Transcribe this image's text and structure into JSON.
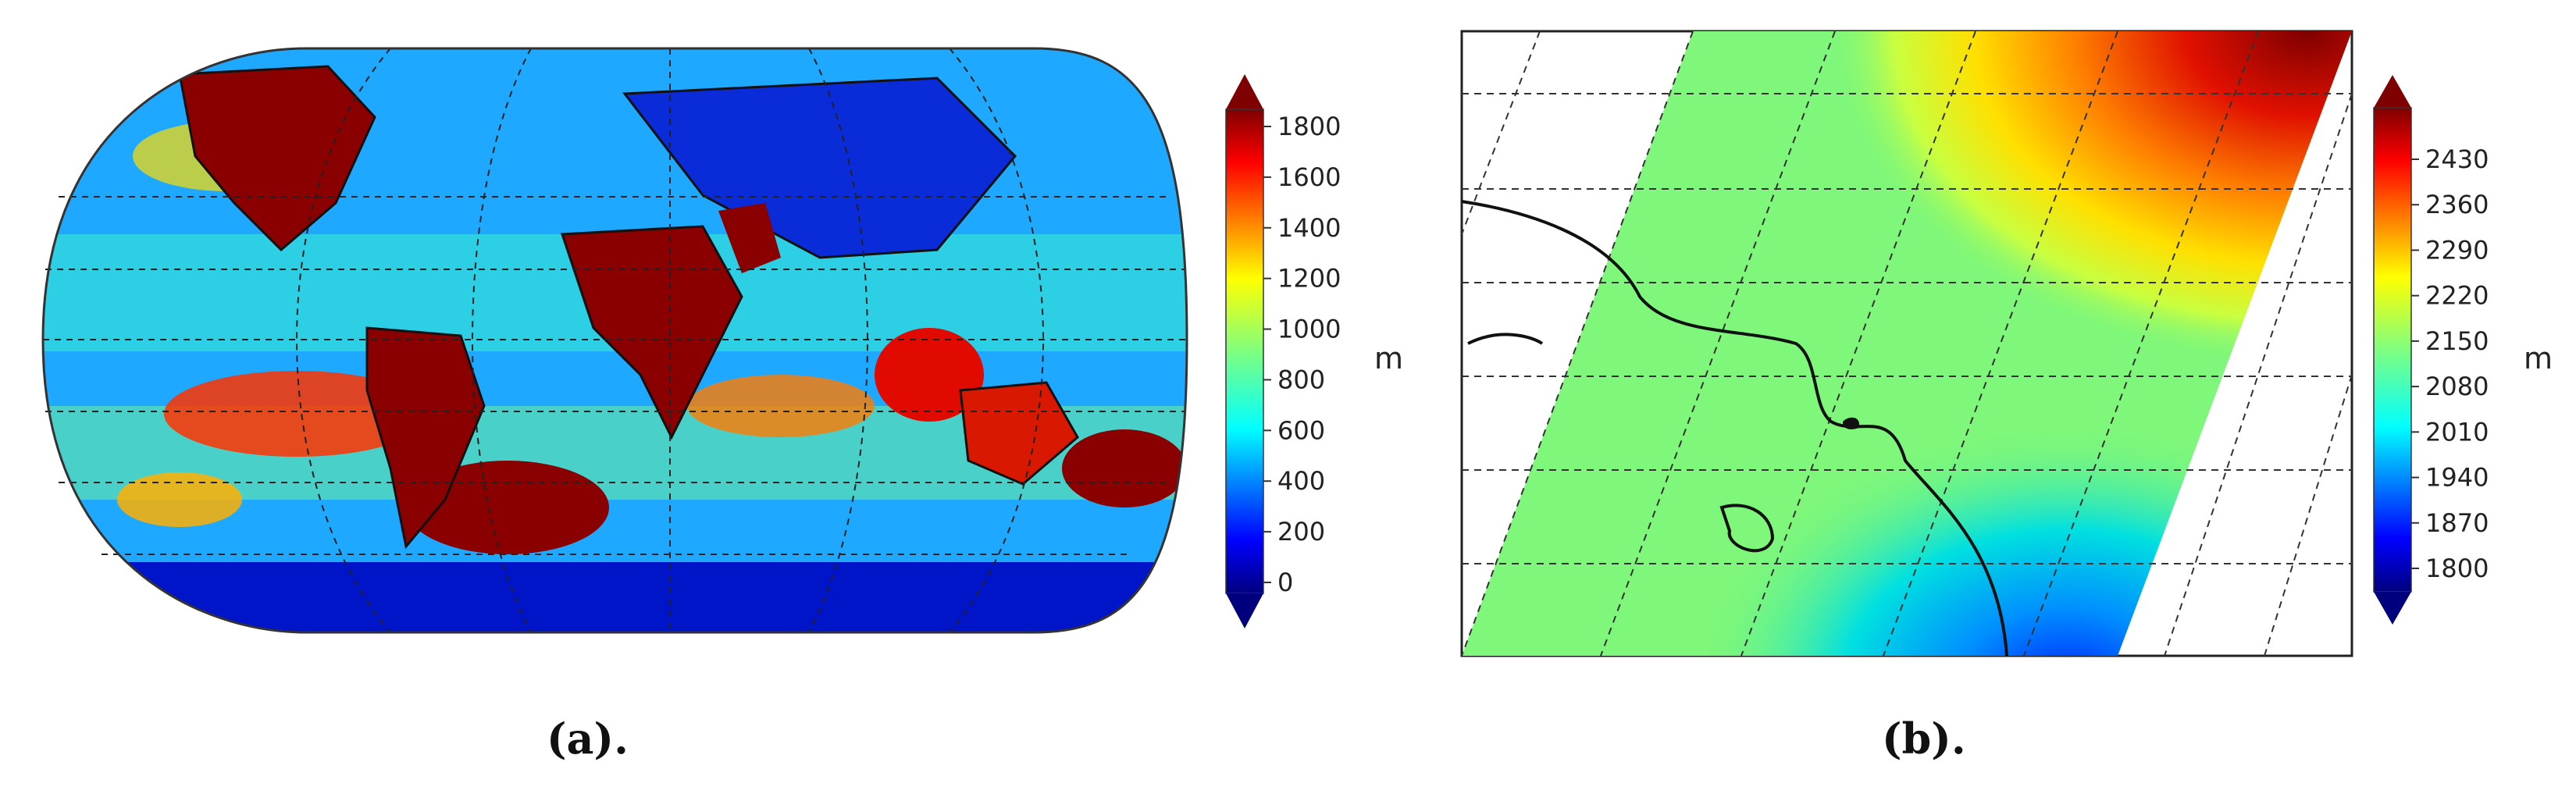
{
  "chart_data": [
    {
      "type": "heatmap",
      "caption": "(a).",
      "projection": "robinson-world",
      "colorbar": {
        "unit": "m",
        "min": 0,
        "max": 1800,
        "ticks": [
          "0",
          "200",
          "400",
          "600",
          "800",
          "1000",
          "1200",
          "1400",
          "1600",
          "1800"
        ],
        "extend": "both",
        "colormap": "jet"
      },
      "gridlines": "dashed",
      "coastlines": true
    },
    {
      "type": "heatmap",
      "caption": "(b).",
      "projection": "regional-swath",
      "colorbar": {
        "unit": "m",
        "min": 1800,
        "max": 2430,
        "ticks": [
          "1800",
          "1870",
          "1940",
          "2010",
          "2080",
          "2150",
          "2220",
          "2290",
          "2360",
          "2430"
        ],
        "extend": "both",
        "colormap": "jet"
      },
      "gridlines": "dashed",
      "coastlines": true
    }
  ],
  "colors": {
    "jet": [
      "#00007f",
      "#0000ff",
      "#007fff",
      "#00ffff",
      "#7fff7f",
      "#ffff00",
      "#ff7f00",
      "#ff0000",
      "#7f0000"
    ],
    "swath_green": "#7ef77a",
    "grid": "#333333",
    "coast": "#111111"
  }
}
